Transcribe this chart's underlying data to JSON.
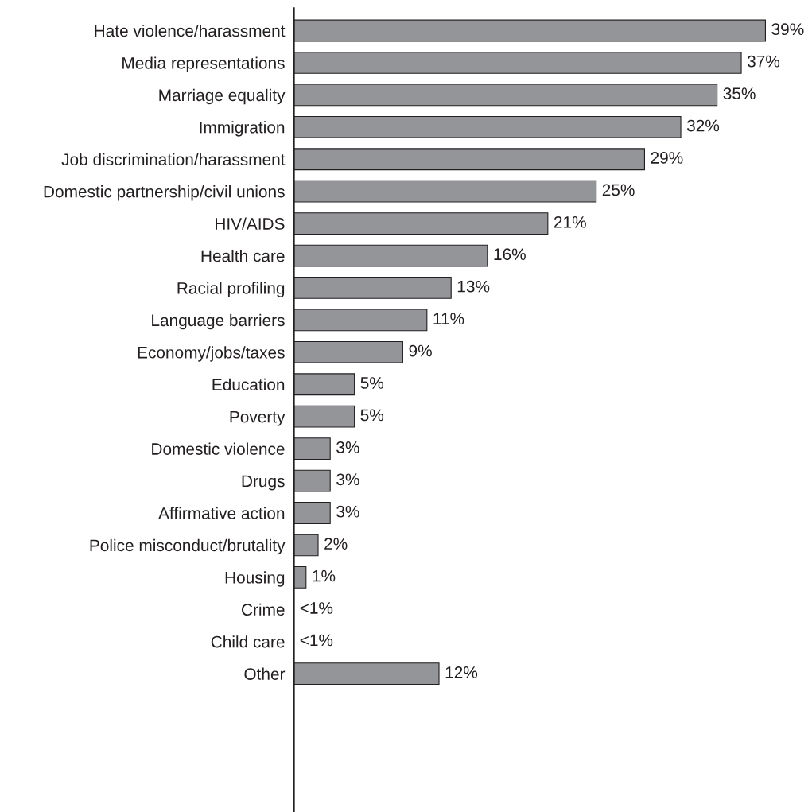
{
  "chart_data": {
    "type": "bar",
    "orientation": "horizontal",
    "categories": [
      "Hate violence/harassment",
      "Media representations",
      "Marriage equality",
      "Immigration",
      "Job discrimination/harassment",
      "Domestic partnership/civil unions",
      "HIV/AIDS",
      "Health care",
      "Racial profiling",
      "Language barriers",
      "Economy/jobs/taxes",
      "Education",
      "Poverty",
      "Domestic violence",
      "Drugs",
      "Affirmative action",
      "Police misconduct/brutality",
      "Housing",
      "Crime",
      "Child care",
      "Other"
    ],
    "values": [
      39,
      37,
      35,
      32,
      29,
      25,
      21,
      16,
      13,
      11,
      9,
      5,
      5,
      3,
      3,
      3,
      2,
      1,
      null,
      null,
      12
    ],
    "value_labels": [
      "39%",
      "37%",
      "35%",
      "32%",
      "29%",
      "25%",
      "21%",
      "16%",
      "13%",
      "11%",
      "9%",
      "5%",
      "5%",
      "3%",
      "3%",
      "3%",
      "2%",
      "1%",
      "<1%",
      "<1%",
      "12%"
    ],
    "color": "#939598",
    "grid": false,
    "tick_labels": "y"
  }
}
